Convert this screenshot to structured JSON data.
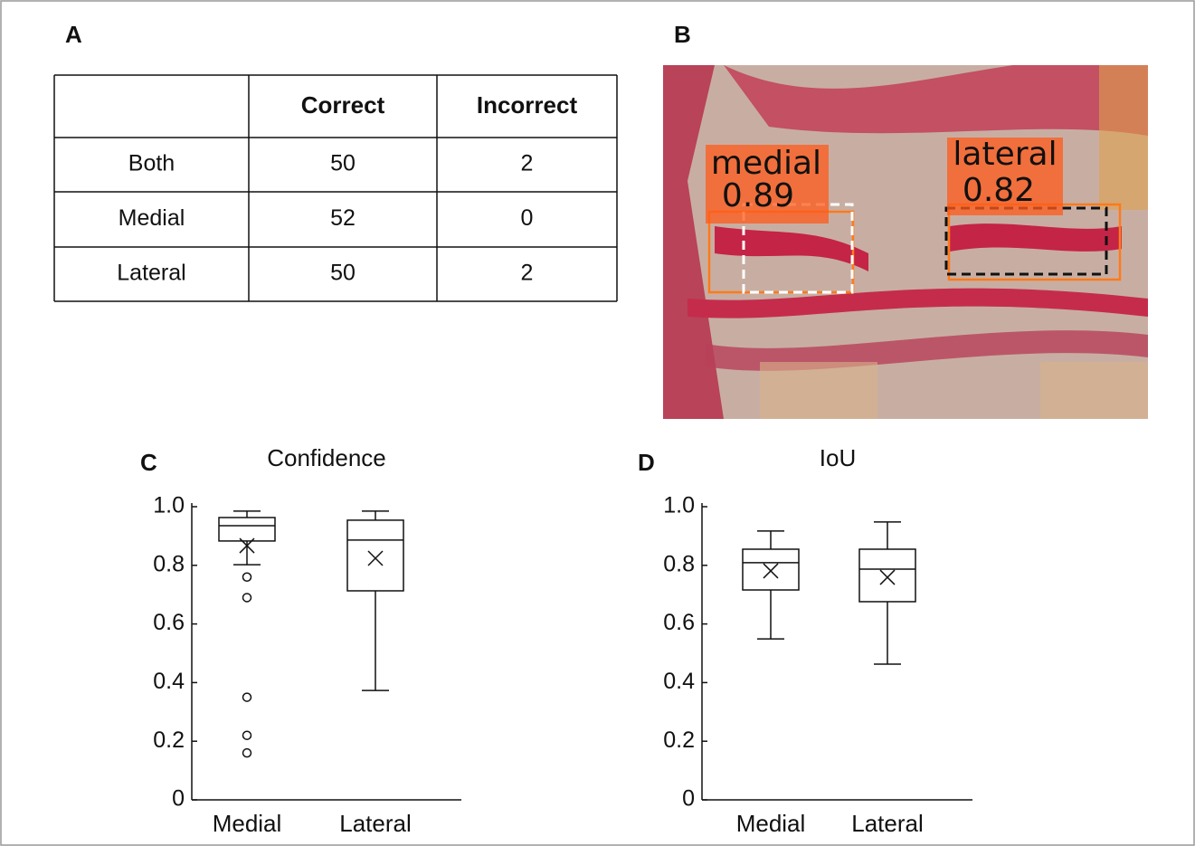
{
  "panels": [
    "A",
    "B",
    "C",
    "D"
  ],
  "table": {
    "columns": [
      "Correct",
      "Incorrect"
    ],
    "rows": [
      [
        "Both",
        50,
        2
      ],
      [
        "Medial",
        52,
        0
      ],
      [
        "Lateral",
        50,
        2
      ]
    ]
  },
  "image": {
    "detections": [
      {
        "label": "medial",
        "score": 0.89
      },
      {
        "label": "lateral",
        "score": 0.82
      }
    ]
  },
  "chart_data": [
    {
      "type": "box",
      "title": "Confidence",
      "categories": [
        "Medial",
        "Lateral"
      ],
      "boxes": [
        {
          "min": 0.802,
          "q1": 0.883,
          "median": 0.935,
          "q3": 0.963,
          "max": 0.985,
          "mean": 0.867,
          "outliers": [
            0.76,
            0.69,
            0.35,
            0.22,
            0.16
          ]
        },
        {
          "min": 0.373,
          "q1": 0.713,
          "median": 0.886,
          "q3": 0.954,
          "max": 0.985,
          "mean": 0.824,
          "outliers": []
        }
      ],
      "ylim": [
        0,
        1
      ],
      "yticks": [
        0,
        0.2,
        0.4,
        0.6,
        0.8,
        {
          "value": 1,
          "label": "1.0"
        }
      ]
    },
    {
      "type": "box",
      "title": "IoU",
      "categories": [
        "Medial",
        "Lateral"
      ],
      "boxes": [
        {
          "min": 0.549,
          "q1": 0.716,
          "median": 0.809,
          "q3": 0.855,
          "max": 0.917,
          "mean": 0.781,
          "outliers": []
        },
        {
          "min": 0.463,
          "q1": 0.676,
          "median": 0.787,
          "q3": 0.855,
          "max": 0.948,
          "mean": 0.759,
          "outliers": []
        }
      ],
      "ylim": [
        0,
        1
      ],
      "yticks": [
        0,
        0.2,
        0.4,
        0.6,
        0.8,
        {
          "value": 1,
          "label": "1.0"
        }
      ]
    }
  ]
}
